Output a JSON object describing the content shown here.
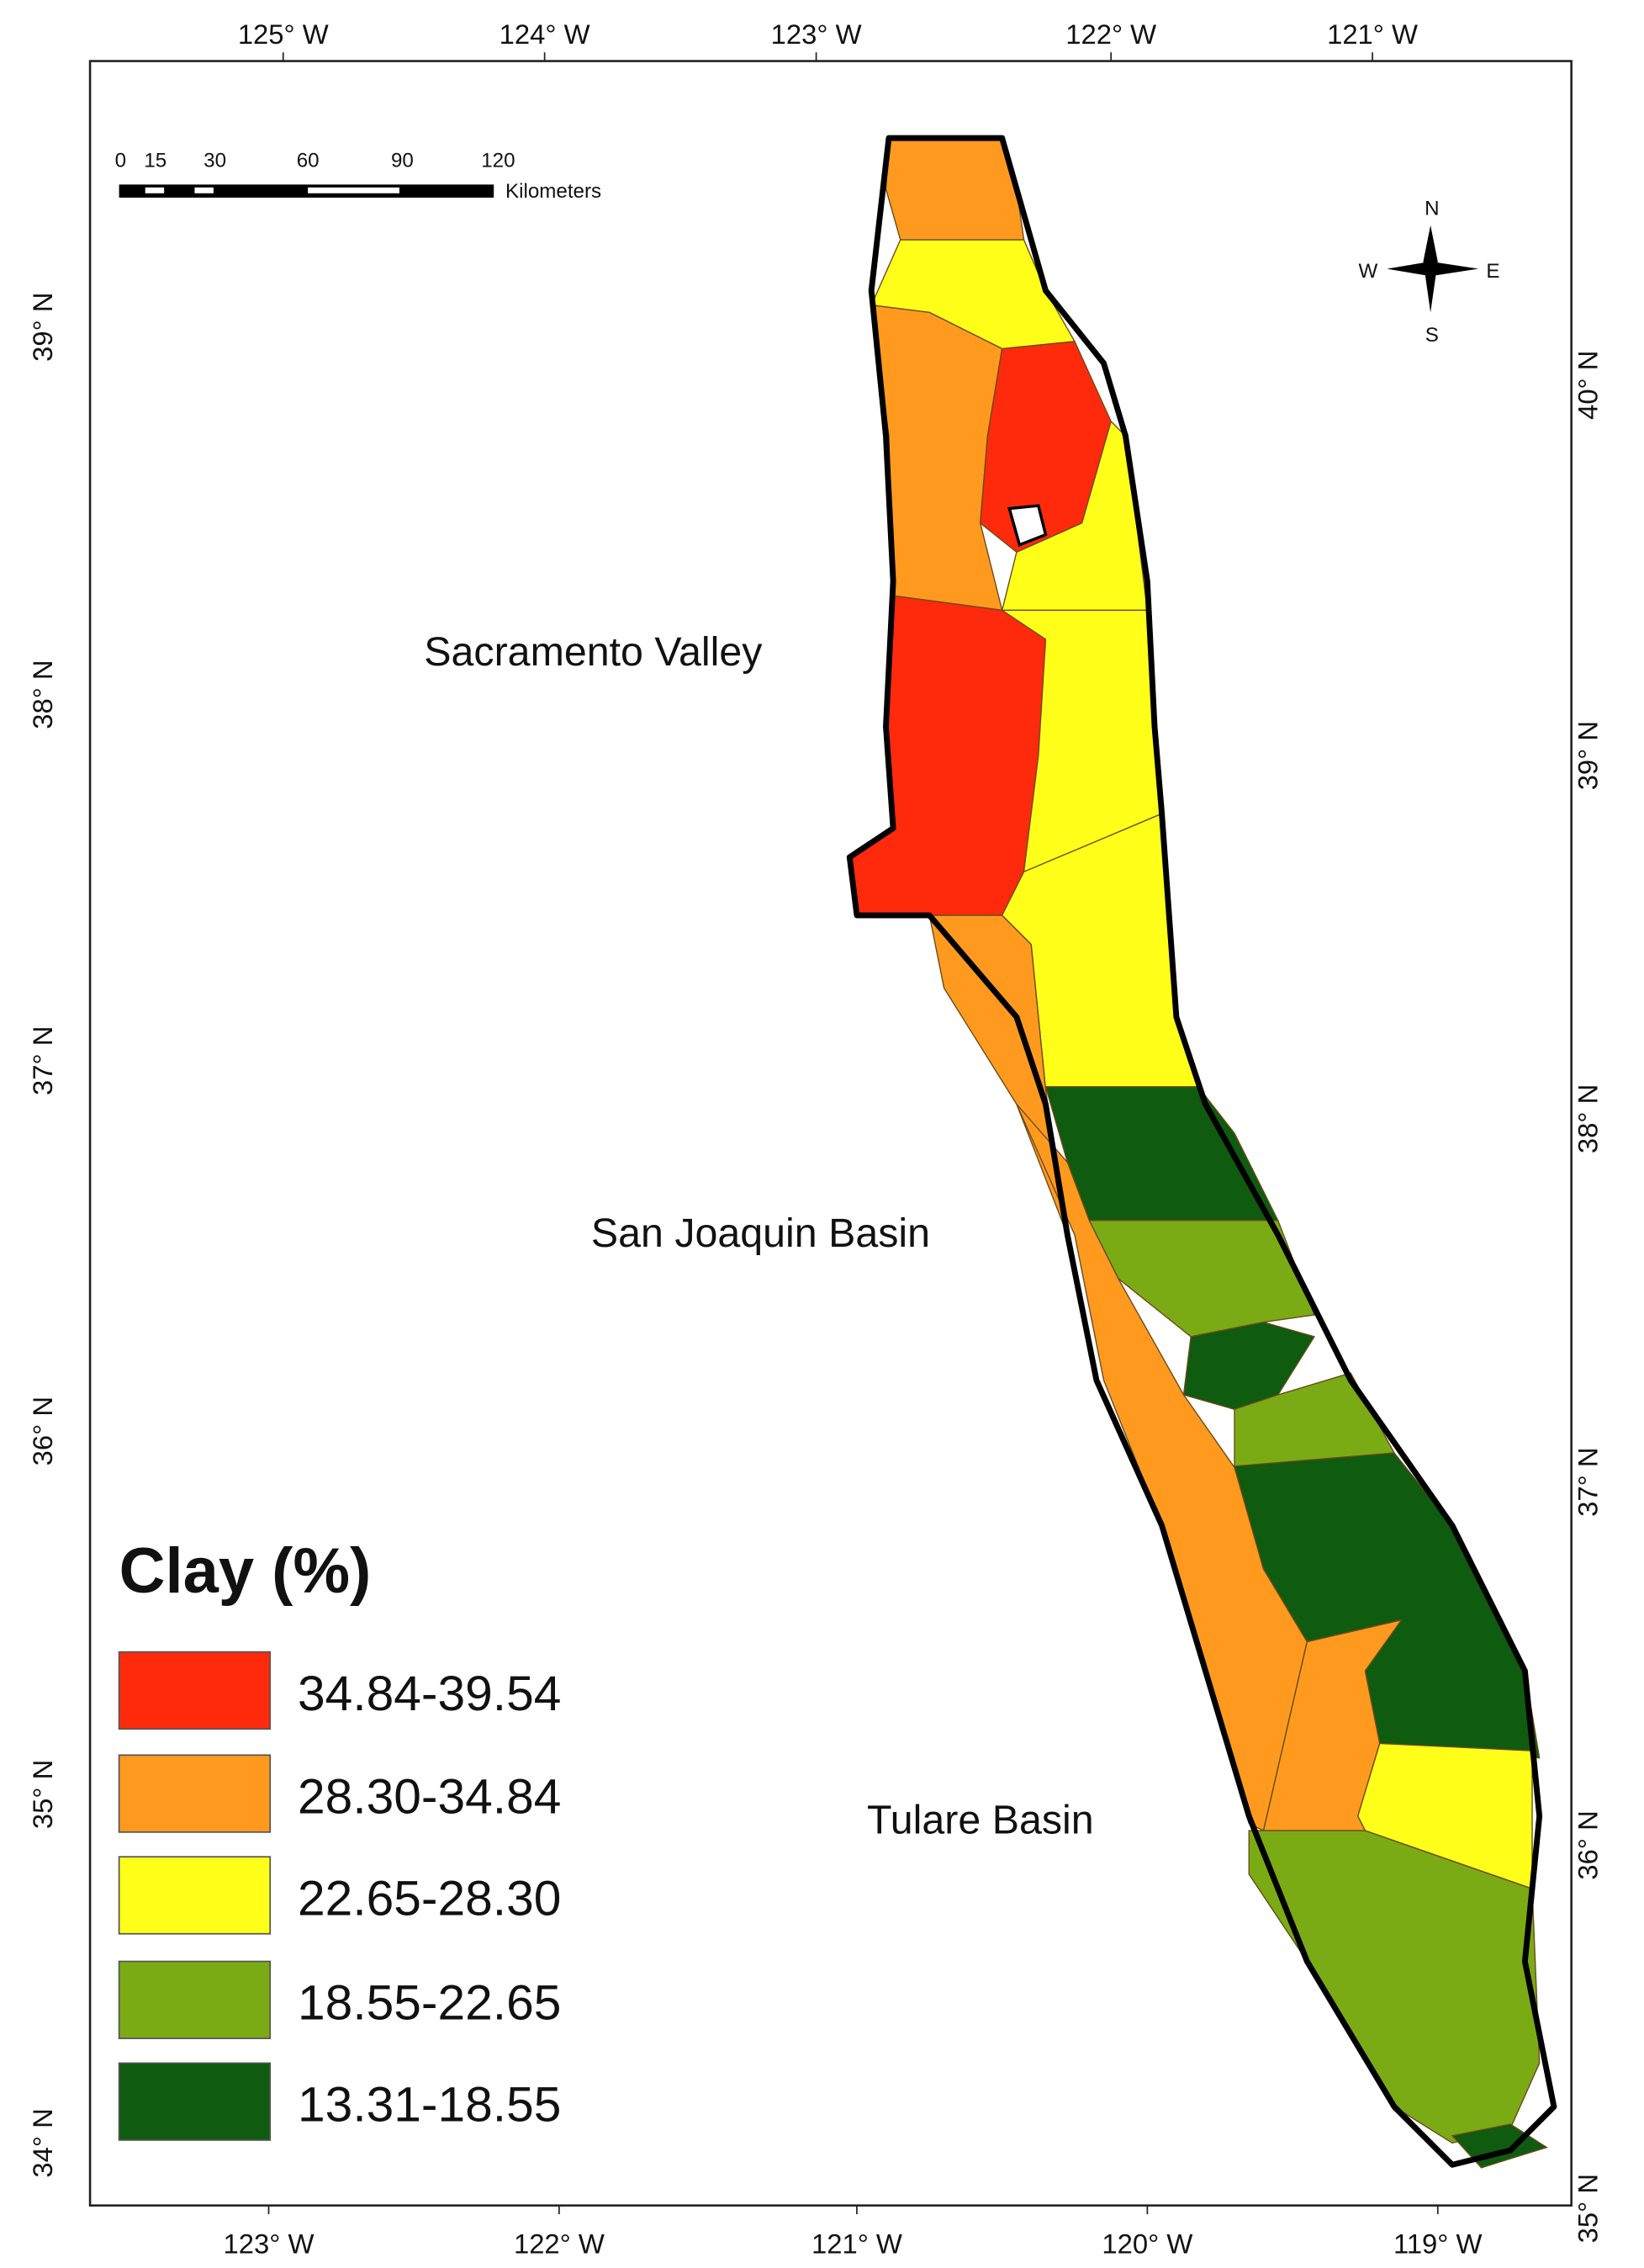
{
  "map": {
    "top_labels": [
      "125° W",
      "124° W",
      "123° W",
      "122° W",
      "121° W"
    ],
    "bottom_labels": [
      "123° W",
      "122° W",
      "121° W",
      "120° W",
      "119° W"
    ],
    "left_labels": [
      "39° N",
      "38° N",
      "37° N",
      "36° N",
      "35° N",
      "34° N"
    ],
    "right_labels": [
      "40° N",
      "39° N",
      "38° N",
      "37° N",
      "36° N",
      "35° N"
    ],
    "regions": [
      "Sacramento Valley",
      "San Joaquin Basin",
      "Tulare Basin"
    ],
    "scale_bar": {
      "ticks": [
        "0",
        "15",
        "30",
        "60",
        "90",
        "120"
      ],
      "unit": "Kilometers"
    },
    "compass": {
      "n": "N",
      "e": "E",
      "s": "S",
      "w": "W"
    },
    "legend": {
      "title": "Clay (%)",
      "items": [
        {
          "label": "34.84-39.54",
          "color": "#ff2a0c"
        },
        {
          "label": "28.30-34.84",
          "color": "#ff9a1f"
        },
        {
          "label": "22.65-28.30",
          "color": "#ffff1a"
        },
        {
          "label": "18.55-22.65",
          "color": "#7aab14"
        },
        {
          "label": "13.31-18.55",
          "color": "#0f5b0f"
        }
      ]
    }
  }
}
